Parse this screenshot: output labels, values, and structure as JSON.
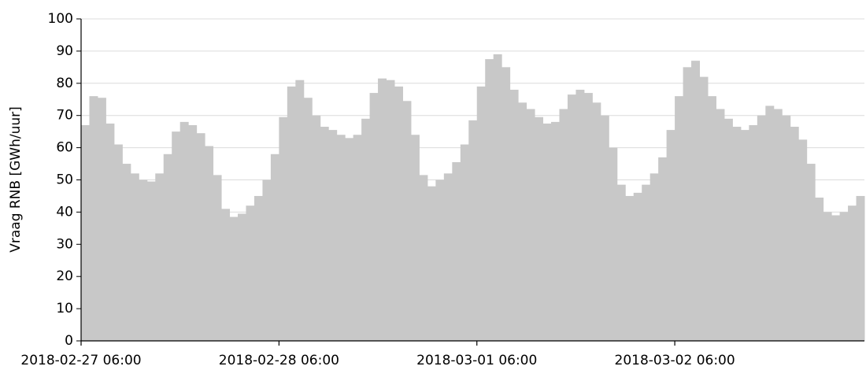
{
  "chart_data": {
    "type": "step-bar",
    "y_label": "Vraag RNB [GWh/uur]",
    "color": "#c8c8c8",
    "grid": true,
    "x": [
      "2018-02-27 06:00",
      "2018-02-27 07:00",
      "2018-02-27 08:00",
      "2018-02-27 09:00",
      "2018-02-27 10:00",
      "2018-02-27 11:00",
      "2018-02-27 12:00",
      "2018-02-27 13:00",
      "2018-02-27 14:00",
      "2018-02-27 15:00",
      "2018-02-27 16:00",
      "2018-02-27 17:00",
      "2018-02-27 18:00",
      "2018-02-27 19:00",
      "2018-02-27 20:00",
      "2018-02-27 21:00",
      "2018-02-27 22:00",
      "2018-02-27 23:00",
      "2018-02-28 00:00",
      "2018-02-28 01:00",
      "2018-02-28 02:00",
      "2018-02-28 03:00",
      "2018-02-28 04:00",
      "2018-02-28 05:00",
      "2018-02-28 06:00",
      "2018-02-28 07:00",
      "2018-02-28 08:00",
      "2018-02-28 09:00",
      "2018-02-28 10:00",
      "2018-02-28 11:00",
      "2018-02-28 12:00",
      "2018-02-28 13:00",
      "2018-02-28 14:00",
      "2018-02-28 15:00",
      "2018-02-28 16:00",
      "2018-02-28 17:00",
      "2018-02-28 18:00",
      "2018-02-28 19:00",
      "2018-02-28 20:00",
      "2018-02-28 21:00",
      "2018-02-28 22:00",
      "2018-02-28 23:00",
      "2018-03-01 00:00",
      "2018-03-01 01:00",
      "2018-03-01 02:00",
      "2018-03-01 03:00",
      "2018-03-01 04:00",
      "2018-03-01 05:00",
      "2018-03-01 06:00",
      "2018-03-01 07:00",
      "2018-03-01 08:00",
      "2018-03-01 09:00",
      "2018-03-01 10:00",
      "2018-03-01 11:00",
      "2018-03-01 12:00",
      "2018-03-01 13:00",
      "2018-03-01 14:00",
      "2018-03-01 15:00",
      "2018-03-01 16:00",
      "2018-03-01 17:00",
      "2018-03-01 18:00",
      "2018-03-01 19:00",
      "2018-03-01 20:00",
      "2018-03-01 21:00",
      "2018-03-01 22:00",
      "2018-03-01 23:00",
      "2018-03-02 00:00",
      "2018-03-02 01:00",
      "2018-03-02 02:00",
      "2018-03-02 03:00",
      "2018-03-02 04:00",
      "2018-03-02 05:00",
      "2018-03-02 06:00",
      "2018-03-02 07:00",
      "2018-03-02 08:00",
      "2018-03-02 09:00",
      "2018-03-02 10:00",
      "2018-03-02 11:00",
      "2018-03-02 12:00",
      "2018-03-02 13:00",
      "2018-03-02 14:00",
      "2018-03-02 15:00",
      "2018-03-02 16:00",
      "2018-03-02 17:00",
      "2018-03-02 18:00",
      "2018-03-02 19:00",
      "2018-03-02 20:00",
      "2018-03-02 21:00",
      "2018-03-02 22:00",
      "2018-03-02 23:00",
      "2018-03-03 00:00",
      "2018-03-03 01:00",
      "2018-03-03 02:00",
      "2018-03-03 03:00",
      "2018-03-03 04:00"
    ],
    "values": [
      67,
      76,
      75.5,
      67.5,
      61,
      55,
      52,
      50,
      49.5,
      52,
      58,
      65,
      68,
      67,
      64.5,
      60.5,
      51.5,
      41,
      38.5,
      39.5,
      42,
      45,
      50,
      58,
      69.5,
      79,
      81,
      75.5,
      70,
      66.5,
      65.5,
      64,
      63,
      64,
      69,
      77,
      81.5,
      81,
      79,
      74.5,
      64,
      51.5,
      48,
      50,
      52,
      55.5,
      61,
      68.5,
      79,
      87.5,
      89,
      85,
      78,
      74,
      72,
      69.5,
      67.5,
      68,
      72,
      76.5,
      78,
      77,
      74,
      70,
      60,
      48.5,
      45,
      46,
      48.5,
      52,
      57,
      65.5,
      76,
      85,
      87,
      82,
      76,
      72,
      69,
      66.5,
      65.5,
      67,
      70,
      73,
      72,
      70,
      66.5,
      62.5,
      55,
      44.5,
      40,
      39,
      40,
      42,
      45
    ],
    "xlim": [
      "2018-02-27 06:00",
      "2018-03-03 05:00"
    ],
    "xticks": [
      "2018-02-27 06:00",
      "2018-02-28 06:00",
      "2018-03-01 06:00",
      "2018-03-02 06:00"
    ],
    "ylim": [
      0,
      100
    ],
    "yticks": [
      0,
      10,
      20,
      30,
      40,
      50,
      60,
      70,
      80,
      90,
      100
    ]
  }
}
